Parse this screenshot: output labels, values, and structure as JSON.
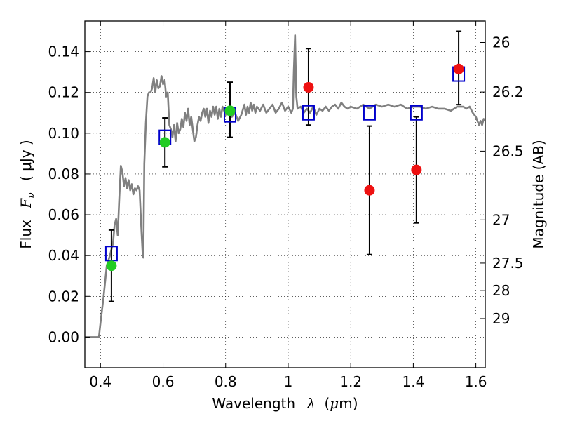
{
  "chart_data": {
    "type": "scatter",
    "xlabel_text": "Wavelength",
    "xlabel_symbol": "λ",
    "xlabel_unit_open": "(",
    "xlabel_unit_mu": "μ",
    "xlabel_unit_rest": "m)",
    "ylabel_text": "Flux",
    "ylabel_symbol": "F",
    "ylabel_symbol_sub": "ν",
    "ylabel_unit": "( μJy )",
    "y2label": "Magnitude (AB)",
    "xlim": [
      0.35,
      1.63
    ],
    "ylim": [
      -0.015,
      0.155
    ],
    "grid": true,
    "xticks": [
      0.4,
      0.6,
      0.8,
      1.0,
      1.2,
      1.4,
      1.6
    ],
    "xtick_labels": [
      "0.4",
      "0.6",
      "0.8",
      "1",
      "1.2",
      "1.4",
      "1.6"
    ],
    "yticks": [
      0.0,
      0.02,
      0.04,
      0.06,
      0.08,
      0.1,
      0.12,
      0.14
    ],
    "ytick_labels": [
      "0.00",
      "0.02",
      "0.04",
      "0.06",
      "0.08",
      "0.10",
      "0.12",
      "0.14"
    ],
    "y2ticks": [
      {
        "label": "26",
        "flux": 0.1445
      },
      {
        "label": "26.2",
        "flux": 0.1202
      },
      {
        "label": "26.5",
        "flux": 0.0912
      },
      {
        "label": "27",
        "flux": 0.0575
      },
      {
        "label": "27.5",
        "flux": 0.0363
      },
      {
        "label": "28",
        "flux": 0.0229
      },
      {
        "label": "29",
        "flux": 0.0091
      }
    ],
    "model_spectrum": {
      "color": "#808080",
      "points": [
        [
          0.35,
          0.0
        ],
        [
          0.38,
          0.0
        ],
        [
          0.395,
          0.0
        ],
        [
          0.4,
          0.007
        ],
        [
          0.41,
          0.02
        ],
        [
          0.42,
          0.035
        ],
        [
          0.43,
          0.04
        ],
        [
          0.44,
          0.046
        ],
        [
          0.445,
          0.055
        ],
        [
          0.45,
          0.058
        ],
        [
          0.455,
          0.05
        ],
        [
          0.46,
          0.068
        ],
        [
          0.465,
          0.084
        ],
        [
          0.47,
          0.081
        ],
        [
          0.475,
          0.074
        ],
        [
          0.48,
          0.078
        ],
        [
          0.485,
          0.073
        ],
        [
          0.49,
          0.077
        ],
        [
          0.495,
          0.072
        ],
        [
          0.5,
          0.075
        ],
        [
          0.505,
          0.07
        ],
        [
          0.51,
          0.073
        ],
        [
          0.515,
          0.072
        ],
        [
          0.52,
          0.074
        ],
        [
          0.525,
          0.072
        ],
        [
          0.53,
          0.055
        ],
        [
          0.535,
          0.04
        ],
        [
          0.537,
          0.039
        ],
        [
          0.54,
          0.085
        ],
        [
          0.545,
          0.105
        ],
        [
          0.55,
          0.118
        ],
        [
          0.555,
          0.12
        ],
        [
          0.56,
          0.12
        ],
        [
          0.565,
          0.122
        ],
        [
          0.57,
          0.127
        ],
        [
          0.575,
          0.12
        ],
        [
          0.58,
          0.126
        ],
        [
          0.585,
          0.122
        ],
        [
          0.59,
          0.123
        ],
        [
          0.595,
          0.128
        ],
        [
          0.6,
          0.124
        ],
        [
          0.605,
          0.126
        ],
        [
          0.61,
          0.118
        ],
        [
          0.615,
          0.12
        ],
        [
          0.62,
          0.104
        ],
        [
          0.625,
          0.102
        ],
        [
          0.63,
          0.098
        ],
        [
          0.635,
          0.104
        ],
        [
          0.64,
          0.096
        ],
        [
          0.645,
          0.105
        ],
        [
          0.65,
          0.1
        ],
        [
          0.655,
          0.102
        ],
        [
          0.66,
          0.107
        ],
        [
          0.665,
          0.103
        ],
        [
          0.67,
          0.11
        ],
        [
          0.675,
          0.106
        ],
        [
          0.68,
          0.112
        ],
        [
          0.685,
          0.104
        ],
        [
          0.69,
          0.108
        ],
        [
          0.695,
          0.102
        ],
        [
          0.7,
          0.096
        ],
        [
          0.705,
          0.098
        ],
        [
          0.71,
          0.104
        ],
        [
          0.715,
          0.108
        ],
        [
          0.72,
          0.106
        ],
        [
          0.725,
          0.11
        ],
        [
          0.73,
          0.112
        ],
        [
          0.735,
          0.108
        ],
        [
          0.74,
          0.112
        ],
        [
          0.745,
          0.105
        ],
        [
          0.75,
          0.111
        ],
        [
          0.755,
          0.108
        ],
        [
          0.76,
          0.113
        ],
        [
          0.765,
          0.109
        ],
        [
          0.77,
          0.113
        ],
        [
          0.775,
          0.107
        ],
        [
          0.78,
          0.112
        ],
        [
          0.785,
          0.108
        ],
        [
          0.79,
          0.113
        ],
        [
          0.8,
          0.109
        ],
        [
          0.81,
          0.112
        ],
        [
          0.82,
          0.108
        ],
        [
          0.83,
          0.11
        ],
        [
          0.84,
          0.106
        ],
        [
          0.85,
          0.109
        ],
        [
          0.86,
          0.114
        ],
        [
          0.865,
          0.109
        ],
        [
          0.87,
          0.113
        ],
        [
          0.875,
          0.11
        ],
        [
          0.88,
          0.115
        ],
        [
          0.885,
          0.111
        ],
        [
          0.89,
          0.114
        ],
        [
          0.895,
          0.11
        ],
        [
          0.9,
          0.113
        ],
        [
          0.91,
          0.111
        ],
        [
          0.92,
          0.114
        ],
        [
          0.93,
          0.11
        ],
        [
          0.94,
          0.112
        ],
        [
          0.95,
          0.114
        ],
        [
          0.96,
          0.11
        ],
        [
          0.97,
          0.112
        ],
        [
          0.98,
          0.115
        ],
        [
          0.99,
          0.111
        ],
        [
          1.0,
          0.113
        ],
        [
          1.01,
          0.11
        ],
        [
          1.015,
          0.112
        ],
        [
          1.018,
          0.13
        ],
        [
          1.022,
          0.148
        ],
        [
          1.026,
          0.118
        ],
        [
          1.03,
          0.112
        ],
        [
          1.04,
          0.113
        ],
        [
          1.05,
          0.11
        ],
        [
          1.06,
          0.112
        ],
        [
          1.07,
          0.11
        ],
        [
          1.08,
          0.113
        ],
        [
          1.09,
          0.109
        ],
        [
          1.1,
          0.112
        ],
        [
          1.11,
          0.111
        ],
        [
          1.12,
          0.113
        ],
        [
          1.13,
          0.111
        ],
        [
          1.14,
          0.113
        ],
        [
          1.15,
          0.114
        ],
        [
          1.16,
          0.112
        ],
        [
          1.17,
          0.115
        ],
        [
          1.18,
          0.113
        ],
        [
          1.19,
          0.112
        ],
        [
          1.2,
          0.113
        ],
        [
          1.22,
          0.112
        ],
        [
          1.24,
          0.114
        ],
        [
          1.26,
          0.112
        ],
        [
          1.28,
          0.114
        ],
        [
          1.3,
          0.113
        ],
        [
          1.32,
          0.114
        ],
        [
          1.34,
          0.113
        ],
        [
          1.36,
          0.114
        ],
        [
          1.38,
          0.112
        ],
        [
          1.4,
          0.113
        ],
        [
          1.42,
          0.113
        ],
        [
          1.44,
          0.112
        ],
        [
          1.46,
          0.113
        ],
        [
          1.48,
          0.112
        ],
        [
          1.5,
          0.112
        ],
        [
          1.52,
          0.111
        ],
        [
          1.54,
          0.113
        ],
        [
          1.56,
          0.113
        ],
        [
          1.57,
          0.112
        ],
        [
          1.58,
          0.113
        ],
        [
          1.59,
          0.11
        ],
        [
          1.6,
          0.108
        ],
        [
          1.61,
          0.104
        ],
        [
          1.615,
          0.106
        ],
        [
          1.62,
          0.104
        ],
        [
          1.625,
          0.107
        ],
        [
          1.63,
          0.106
        ]
      ]
    },
    "model_photometry": {
      "marker": "square",
      "color": "#0000cc",
      "points": [
        {
          "x": 0.435,
          "y": 0.041
        },
        {
          "x": 0.606,
          "y": 0.098
        },
        {
          "x": 0.814,
          "y": 0.109
        },
        {
          "x": 1.065,
          "y": 0.11
        },
        {
          "x": 1.26,
          "y": 0.11
        },
        {
          "x": 1.41,
          "y": 0.11
        },
        {
          "x": 1.545,
          "y": 0.129
        }
      ]
    },
    "observed_green": {
      "marker": "circle",
      "color": "#22cc22",
      "points": [
        {
          "x": 0.435,
          "y": 0.035,
          "err_low": 0.0175,
          "err_high": 0.0525
        },
        {
          "x": 0.606,
          "y": 0.0955,
          "err_low": 0.0835,
          "err_high": 0.1075
        },
        {
          "x": 0.814,
          "y": 0.111,
          "err_low": 0.098,
          "err_high": 0.125
        }
      ]
    },
    "observed_red": {
      "marker": "circle",
      "color": "#ee1111",
      "points": [
        {
          "x": 1.065,
          "y": 0.1225,
          "err_low": 0.104,
          "err_high": 0.1415
        },
        {
          "x": 1.26,
          "y": 0.072,
          "err_low": 0.0405,
          "err_high": 0.1035
        },
        {
          "x": 1.41,
          "y": 0.082,
          "err_low": 0.056,
          "err_high": 0.108
        },
        {
          "x": 1.545,
          "y": 0.1315,
          "err_low": 0.114,
          "err_high": 0.15
        }
      ]
    }
  }
}
